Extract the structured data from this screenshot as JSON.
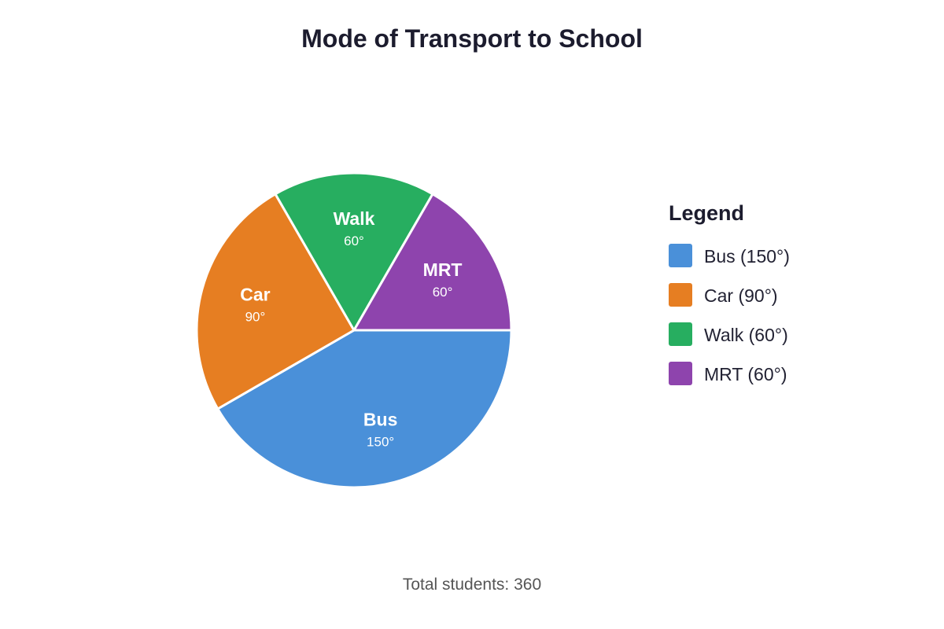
{
  "chart_data": {
    "type": "pie",
    "title": "Mode of Transport to School",
    "unit": "°",
    "categories": [
      "Bus",
      "Car",
      "Walk",
      "MRT"
    ],
    "values": [
      150,
      90,
      60,
      60
    ],
    "colors": [
      "#4a90d9",
      "#e67e22",
      "#27ae60",
      "#8e44ad"
    ],
    "slice_value_labels": [
      "150°",
      "90°",
      "60°",
      "60°"
    ],
    "legend": {
      "title": "Legend",
      "placement": "right",
      "entries": [
        "Bus (150°)",
        "Car (90°)",
        "Walk (60°)",
        "MRT (60°)"
      ]
    },
    "footer": "Total students: 360"
  }
}
